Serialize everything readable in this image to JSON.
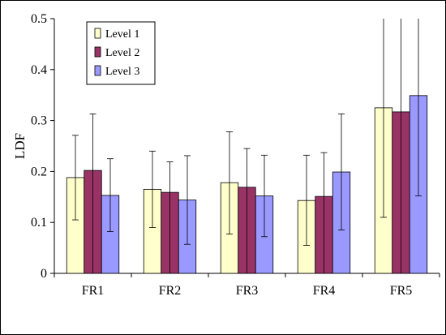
{
  "chart_data": {
    "type": "bar",
    "title": "",
    "xlabel": "",
    "ylabel": "LDF",
    "ylim": [
      0,
      0.5
    ],
    "yticks": [
      0,
      0.1,
      0.2,
      0.3,
      0.4,
      0.5
    ],
    "ytick_labels": [
      "0",
      "0.1",
      "0.2",
      "0.3",
      "0.4",
      "0.5"
    ],
    "categories": [
      "FR1",
      "FR2",
      "FR3",
      "FR4",
      "FR5"
    ],
    "grid": false,
    "legend_position": "top-left",
    "series": [
      {
        "name": "Level 1",
        "color": "#ffffcc",
        "values": [
          0.188,
          0.165,
          0.178,
          0.143,
          0.325
        ],
        "error_low": [
          0.105,
          0.09,
          0.077,
          0.055,
          0.11
        ],
        "error_high": [
          0.271,
          0.24,
          0.278,
          0.232,
          0.5
        ]
      },
      {
        "name": "Level 2",
        "color": "#993366",
        "values": [
          0.202,
          0.159,
          0.169,
          0.151,
          0.317
        ],
        "error_low": [
          0.0,
          0.0,
          0.0,
          0.0,
          0.0
        ],
        "error_high": [
          0.313,
          0.219,
          0.245,
          0.237,
          0.5
        ]
      },
      {
        "name": "Level 3",
        "color": "#9999ff",
        "values": [
          0.153,
          0.144,
          0.152,
          0.199,
          0.349
        ],
        "error_low": [
          0.082,
          0.057,
          0.072,
          0.085,
          0.152
        ],
        "error_high": [
          0.225,
          0.231,
          0.232,
          0.313,
          0.5
        ]
      }
    ]
  }
}
